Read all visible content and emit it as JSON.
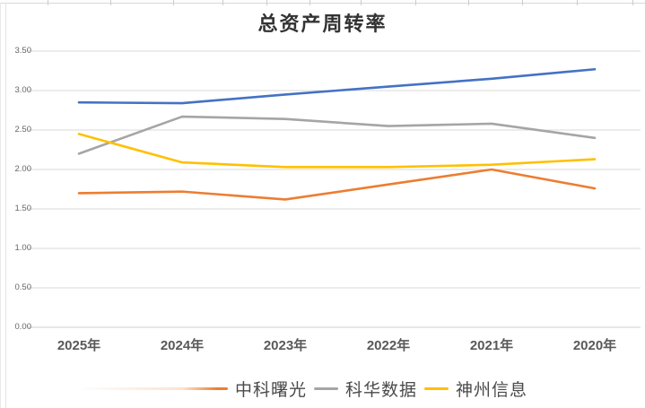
{
  "page": {
    "title": "总资产周转率"
  },
  "chart_data": {
    "type": "line",
    "title": "总资产周转率",
    "categories": [
      "2025年",
      "2024年",
      "2023年",
      "2022年",
      "2021年",
      "2020年"
    ],
    "series": [
      {
        "name": "",
        "color": "#4472C4",
        "in_legend": false,
        "values": [
          2.85,
          2.84,
          2.95,
          3.05,
          3.15,
          3.27
        ]
      },
      {
        "name": "中科曙光",
        "color": "#ED7D31",
        "in_legend": true,
        "values": [
          1.7,
          1.72,
          1.62,
          1.81,
          2.0,
          1.76
        ]
      },
      {
        "name": "科华数据",
        "color": "#A5A5A5",
        "in_legend": true,
        "values": [
          2.2,
          2.67,
          2.64,
          2.55,
          2.58,
          2.4
        ]
      },
      {
        "name": "神州信息",
        "color": "#FFC000",
        "in_legend": true,
        "values": [
          2.45,
          2.09,
          2.03,
          2.03,
          2.06,
          2.13
        ]
      }
    ],
    "y_ticks": [
      "3.50",
      "3.00",
      "2.50",
      "2.00",
      "1.50",
      "1.00",
      "0.50",
      "0.00"
    ],
    "ylim": [
      0,
      3.5
    ],
    "grid": "horizontal",
    "gridline_color": "#d9d9d9",
    "legend_position": "bottom"
  }
}
